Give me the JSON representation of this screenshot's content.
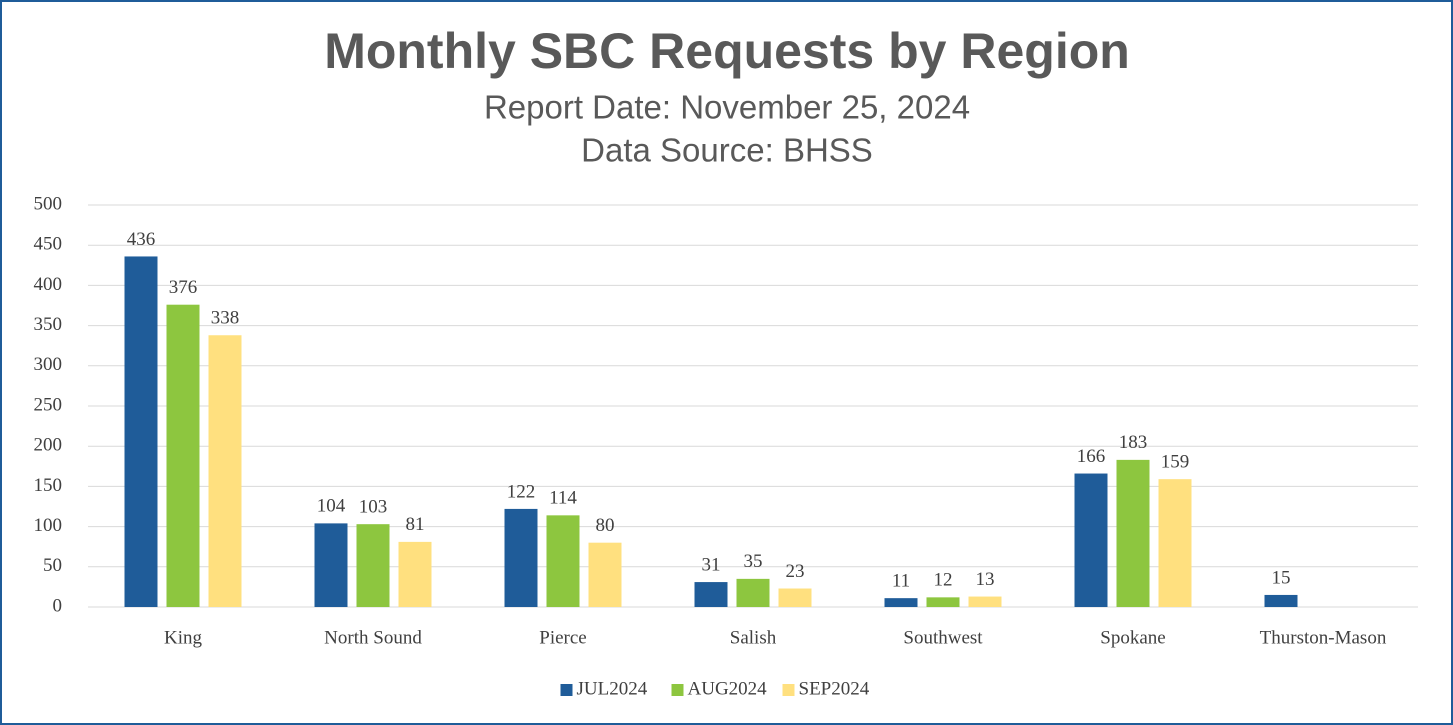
{
  "chart_data": {
    "type": "bar",
    "title": "Monthly SBC Requests by Region",
    "subtitle": [
      "Report Date: November 25, 2024",
      "Data Source: BHSS"
    ],
    "categories": [
      "King",
      "North Sound",
      "Pierce",
      "Salish",
      "Southwest",
      "Spokane",
      "Thurston-Mason"
    ],
    "series": [
      {
        "name": "JUL2024",
        "color": "#1f5c99",
        "values": [
          436,
          104,
          122,
          31,
          11,
          166,
          15
        ]
      },
      {
        "name": "AUG2024",
        "color": "#8dc63f",
        "values": [
          376,
          103,
          114,
          35,
          12,
          183,
          null
        ]
      },
      {
        "name": "SEP2024",
        "color": "#ffe07f",
        "values": [
          338,
          81,
          80,
          23,
          13,
          159,
          null
        ]
      }
    ],
    "ylim": [
      0,
      500
    ],
    "yticks": [
      0,
      50,
      100,
      150,
      200,
      250,
      300,
      350,
      400,
      450,
      500
    ],
    "grid": true,
    "legend": "bottom"
  }
}
